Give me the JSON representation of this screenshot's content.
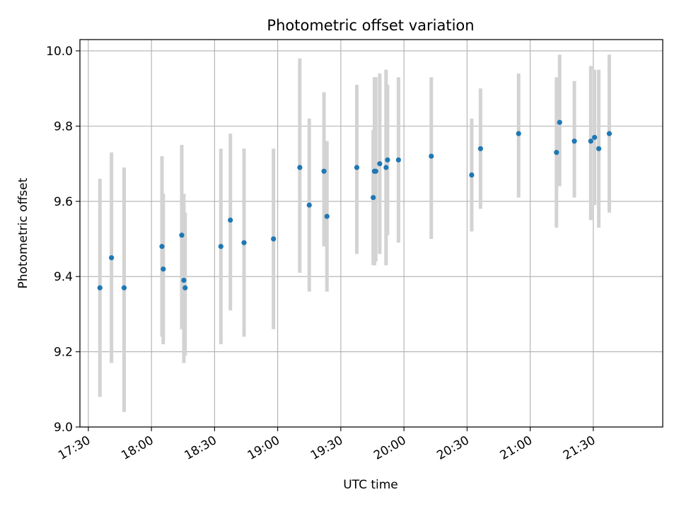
{
  "chart_data": {
    "type": "scatter",
    "title": "Photometric offset variation",
    "xlabel": "UTC time",
    "ylabel": "Photometric offset",
    "x_ticks": [
      "17:30",
      "18:00",
      "18:30",
      "19:00",
      "19:30",
      "20:00",
      "20:30",
      "21:00",
      "21:30"
    ],
    "y_ticks": [
      "9.0",
      "9.2",
      "9.4",
      "9.6",
      "9.8",
      "10.0"
    ],
    "xlim": [
      "17:26",
      "22:03"
    ],
    "ylim": [
      9.0,
      10.03
    ],
    "grid": true,
    "colors": {
      "points": "#1f77b4",
      "errorbars": "#d3d3d3",
      "grid": "#b0b0b0"
    },
    "series": [
      {
        "points": [
          {
            "x": "17:35:30",
            "y": 9.37,
            "lo": 9.08,
            "hi": 9.66
          },
          {
            "x": "17:41:00",
            "y": 9.45,
            "lo": 9.17,
            "hi": 9.73
          },
          {
            "x": "17:47:00",
            "y": 9.37,
            "lo": 9.04,
            "hi": 9.69
          },
          {
            "x": "18:05:00",
            "y": 9.48,
            "lo": 9.24,
            "hi": 9.72
          },
          {
            "x": "18:05:36",
            "y": 9.42,
            "lo": 9.22,
            "hi": 9.62
          },
          {
            "x": "18:14:24",
            "y": 9.51,
            "lo": 9.26,
            "hi": 9.75
          },
          {
            "x": "18:15:24",
            "y": 9.39,
            "lo": 9.17,
            "hi": 9.62
          },
          {
            "x": "18:16:00",
            "y": 9.37,
            "lo": 9.19,
            "hi": 9.57
          },
          {
            "x": "18:33:00",
            "y": 9.48,
            "lo": 9.22,
            "hi": 9.74
          },
          {
            "x": "18:37:30",
            "y": 9.55,
            "lo": 9.31,
            "hi": 9.78
          },
          {
            "x": "18:44:00",
            "y": 9.49,
            "lo": 9.24,
            "hi": 9.74
          },
          {
            "x": "18:58:00",
            "y": 9.5,
            "lo": 9.26,
            "hi": 9.74
          },
          {
            "x": "19:10:30",
            "y": 9.69,
            "lo": 9.41,
            "hi": 9.98
          },
          {
            "x": "19:15:00",
            "y": 9.59,
            "lo": 9.36,
            "hi": 9.82
          },
          {
            "x": "19:22:00",
            "y": 9.68,
            "lo": 9.48,
            "hi": 9.89
          },
          {
            "x": "19:23:24",
            "y": 9.56,
            "lo": 9.36,
            "hi": 9.76
          },
          {
            "x": "19:37:36",
            "y": 9.69,
            "lo": 9.46,
            "hi": 9.91
          },
          {
            "x": "19:45:24",
            "y": 9.61,
            "lo": 9.43,
            "hi": 9.79
          },
          {
            "x": "19:46:00",
            "y": 9.68,
            "lo": 9.43,
            "hi": 9.93
          },
          {
            "x": "19:46:36",
            "y": 9.68,
            "lo": 9.44,
            "hi": 9.93
          },
          {
            "x": "19:48:30",
            "y": 9.7,
            "lo": 9.46,
            "hi": 9.94
          },
          {
            "x": "19:51:30",
            "y": 9.69,
            "lo": 9.43,
            "hi": 9.95
          },
          {
            "x": "19:52:12",
            "y": 9.71,
            "lo": 9.51,
            "hi": 9.91
          },
          {
            "x": "19:57:24",
            "y": 9.71,
            "lo": 9.49,
            "hi": 9.93
          },
          {
            "x": "20:13:00",
            "y": 9.72,
            "lo": 9.5,
            "hi": 9.93
          },
          {
            "x": "20:32:12",
            "y": 9.67,
            "lo": 9.52,
            "hi": 9.82
          },
          {
            "x": "20:36:24",
            "y": 9.74,
            "lo": 9.58,
            "hi": 9.9
          },
          {
            "x": "20:54:30",
            "y": 9.78,
            "lo": 9.61,
            "hi": 9.94
          },
          {
            "x": "21:12:30",
            "y": 9.73,
            "lo": 9.53,
            "hi": 9.93
          },
          {
            "x": "21:14:00",
            "y": 9.81,
            "lo": 9.64,
            "hi": 9.99
          },
          {
            "x": "21:21:00",
            "y": 9.76,
            "lo": 9.61,
            "hi": 9.92
          },
          {
            "x": "21:28:48",
            "y": 9.76,
            "lo": 9.55,
            "hi": 9.96
          },
          {
            "x": "21:30:36",
            "y": 9.77,
            "lo": 9.59,
            "hi": 9.95
          },
          {
            "x": "21:32:36",
            "y": 9.74,
            "lo": 9.53,
            "hi": 9.95
          },
          {
            "x": "21:37:36",
            "y": 9.78,
            "lo": 9.57,
            "hi": 9.99
          }
        ]
      }
    ]
  }
}
